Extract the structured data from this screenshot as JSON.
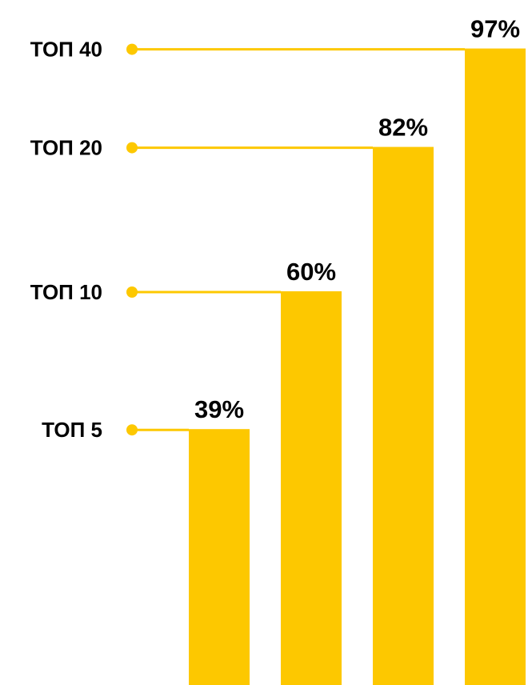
{
  "chart_data": {
    "type": "bar",
    "categories": [
      "ТОП 5",
      "ТОП 10",
      "ТОП 20",
      "ТОП 40"
    ],
    "values": [
      39,
      60,
      82,
      97
    ],
    "value_labels": [
      "39%",
      "60%",
      "82%",
      "97%"
    ],
    "title": "",
    "xlabel": "",
    "ylabel": "",
    "ylim": [
      0,
      100
    ],
    "grid": false,
    "legend": "none",
    "colors": {
      "bar": "#FDC800",
      "leader_line": "#FDC800",
      "text": "#000000"
    }
  }
}
